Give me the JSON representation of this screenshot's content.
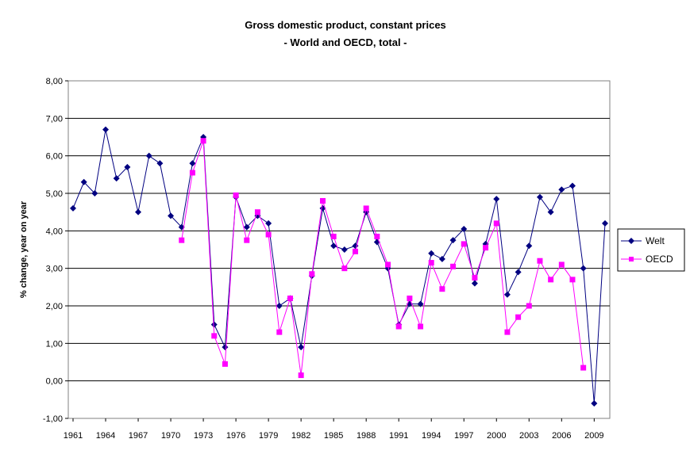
{
  "chart_data": {
    "type": "line",
    "title": "Gross domestic product, constant prices",
    "subtitle": "- World and OECD, total -",
    "xlabel": "",
    "ylabel": "% change, year on year",
    "ylim": [
      -1,
      8
    ],
    "yticks": [
      "-1,00",
      "0,00",
      "1,00",
      "2,00",
      "3,00",
      "4,00",
      "5,00",
      "6,00",
      "7,00",
      "8,00"
    ],
    "xlim": [
      1961,
      2010
    ],
    "xticks": [
      "1961",
      "1964",
      "1967",
      "1970",
      "1973",
      "1976",
      "1979",
      "1982",
      "1985",
      "1988",
      "1991",
      "1994",
      "1997",
      "2000",
      "2003",
      "2006",
      "2009"
    ],
    "grid": "horizontal",
    "legend_position": "right",
    "series": [
      {
        "name": "Welt",
        "color": "#000080",
        "marker": "diamond",
        "x": [
          1961,
          1962,
          1963,
          1964,
          1965,
          1966,
          1967,
          1968,
          1969,
          1970,
          1971,
          1972,
          1973,
          1974,
          1975,
          1976,
          1977,
          1978,
          1979,
          1980,
          1981,
          1982,
          1983,
          1984,
          1985,
          1986,
          1987,
          1988,
          1989,
          1990,
          1991,
          1992,
          1993,
          1994,
          1995,
          1996,
          1997,
          1998,
          1999,
          2000,
          2001,
          2002,
          2003,
          2004,
          2005,
          2006,
          2007,
          2008,
          2009,
          2010
        ],
        "values": [
          4.6,
          5.3,
          5.0,
          6.7,
          5.4,
          5.7,
          4.5,
          6.0,
          5.8,
          4.4,
          4.1,
          5.8,
          6.5,
          1.5,
          0.9,
          4.9,
          4.1,
          4.4,
          4.2,
          2.0,
          2.2,
          0.9,
          2.8,
          4.6,
          3.6,
          3.5,
          3.6,
          4.5,
          3.7,
          3.0,
          1.5,
          2.05,
          2.05,
          3.4,
          3.25,
          3.75,
          4.05,
          2.6,
          3.65,
          4.85,
          2.3,
          2.9,
          3.6,
          4.9,
          4.5,
          5.1,
          5.2,
          3.0,
          -0.6,
          4.2
        ]
      },
      {
        "name": "OECD",
        "color": "#ff00ff",
        "marker": "square",
        "x": [
          1971,
          1972,
          1973,
          1974,
          1975,
          1976,
          1977,
          1978,
          1979,
          1980,
          1981,
          1982,
          1983,
          1984,
          1985,
          1986,
          1987,
          1988,
          1989,
          1990,
          1991,
          1992,
          1993,
          1994,
          1995,
          1996,
          1997,
          1998,
          1999,
          2000,
          2001,
          2002,
          2003,
          2004,
          2005,
          2006,
          2007,
          2008
        ],
        "values": [
          3.75,
          5.55,
          6.4,
          1.2,
          0.45,
          4.95,
          3.75,
          4.5,
          3.9,
          1.3,
          2.2,
          0.15,
          2.85,
          4.8,
          3.85,
          3.0,
          3.45,
          4.6,
          3.85,
          3.1,
          1.45,
          2.2,
          1.45,
          3.15,
          2.45,
          3.05,
          3.65,
          2.75,
          3.55,
          4.2,
          1.3,
          1.7,
          2.0,
          3.2,
          2.7,
          3.1,
          2.7,
          0.35
        ]
      }
    ]
  }
}
